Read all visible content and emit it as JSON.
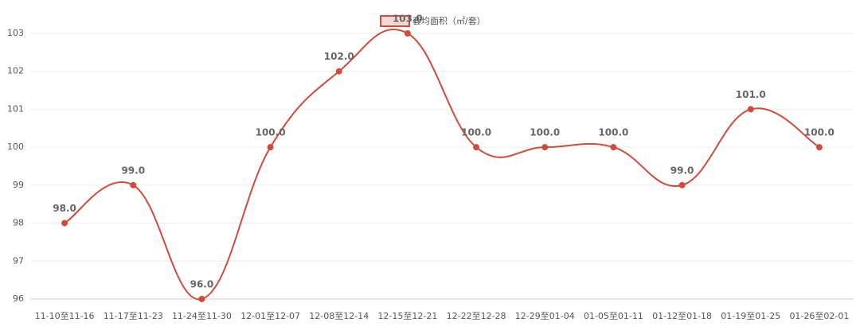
{
  "chart_data": {
    "type": "line",
    "legend": "套均面积（㎡/套）",
    "categories": [
      "11-10至11-16",
      "11-17至11-23",
      "11-24至11-30",
      "12-01至12-07",
      "12-08至12-14",
      "12-15至12-21",
      "12-22至12-28",
      "12-29至01-04",
      "01-05至01-11",
      "01-12至01-18",
      "01-19至01-25",
      "01-26至02-01"
    ],
    "series": [
      {
        "name": "套均面积（㎡/套）",
        "color": "#d04b3c",
        "values": [
          98,
          99,
          96,
          100,
          102,
          103,
          100,
          100,
          100,
          99,
          101,
          100
        ],
        "value_labels": [
          "98.0",
          "99.0",
          "96.0",
          "100.0",
          "102.0",
          "103.0",
          "100.0",
          "100.0",
          "100.0",
          "99.0",
          "101.0",
          "100.0"
        ]
      }
    ],
    "ylim": [
      96,
      103
    ],
    "yticks": [
      96,
      97,
      98,
      99,
      100,
      101,
      102,
      103
    ],
    "grid": true,
    "smooth": true
  }
}
